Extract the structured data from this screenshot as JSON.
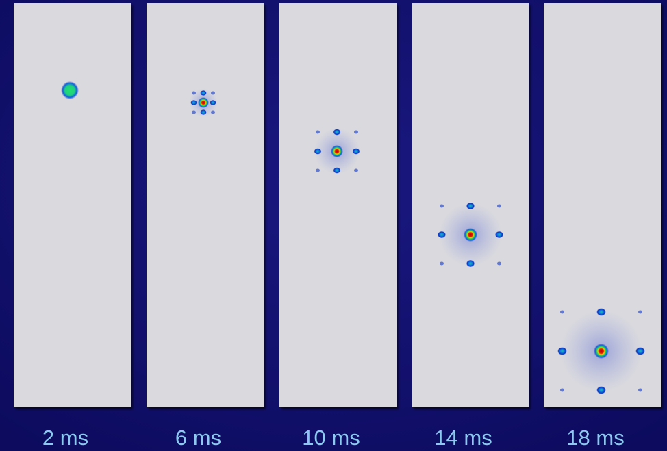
{
  "panels": [
    {
      "label": "2 ms"
    },
    {
      "label": "6 ms"
    },
    {
      "label": "10 ms"
    },
    {
      "label": "14 ms"
    },
    {
      "label": "18 ms"
    }
  ]
}
